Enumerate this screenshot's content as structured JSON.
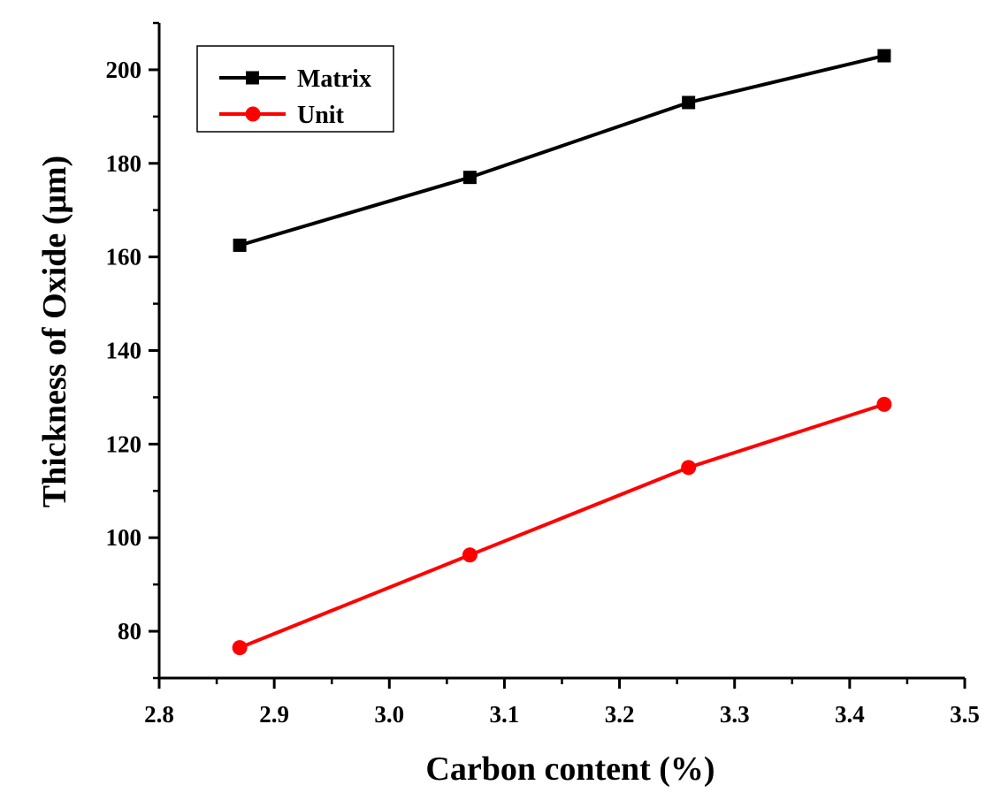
{
  "chart_data": {
    "type": "line",
    "title": "",
    "xlabel": "Carbon content (%)",
    "ylabel": "Thickness of Oxide (μm)",
    "xlim": [
      2.8,
      3.5
    ],
    "ylim": [
      70,
      210
    ],
    "xticks": [
      2.8,
      2.9,
      3.0,
      3.1,
      3.2,
      3.3,
      3.4,
      3.5
    ],
    "xtick_labels": [
      "2.8",
      "2.9",
      "3.0",
      "3.1",
      "3.2",
      "3.3",
      "3.4",
      "3.5"
    ],
    "yticks": [
      80,
      100,
      120,
      140,
      160,
      180,
      200
    ],
    "ytick_labels": [
      "80",
      "100",
      "120",
      "140",
      "160",
      "180",
      "200"
    ],
    "grid": false,
    "legend_position": "top-left",
    "series": [
      {
        "name": "Matrix",
        "marker": "square",
        "color": "#000000",
        "x": [
          2.87,
          3.07,
          3.26,
          3.43
        ],
        "y": [
          162.5,
          177,
          193,
          203
        ]
      },
      {
        "name": "Unit",
        "marker": "circle",
        "color": "#ff0000",
        "x": [
          2.87,
          3.07,
          3.26,
          3.43
        ],
        "y": [
          76.5,
          96.3,
          115,
          128.5
        ]
      }
    ]
  }
}
